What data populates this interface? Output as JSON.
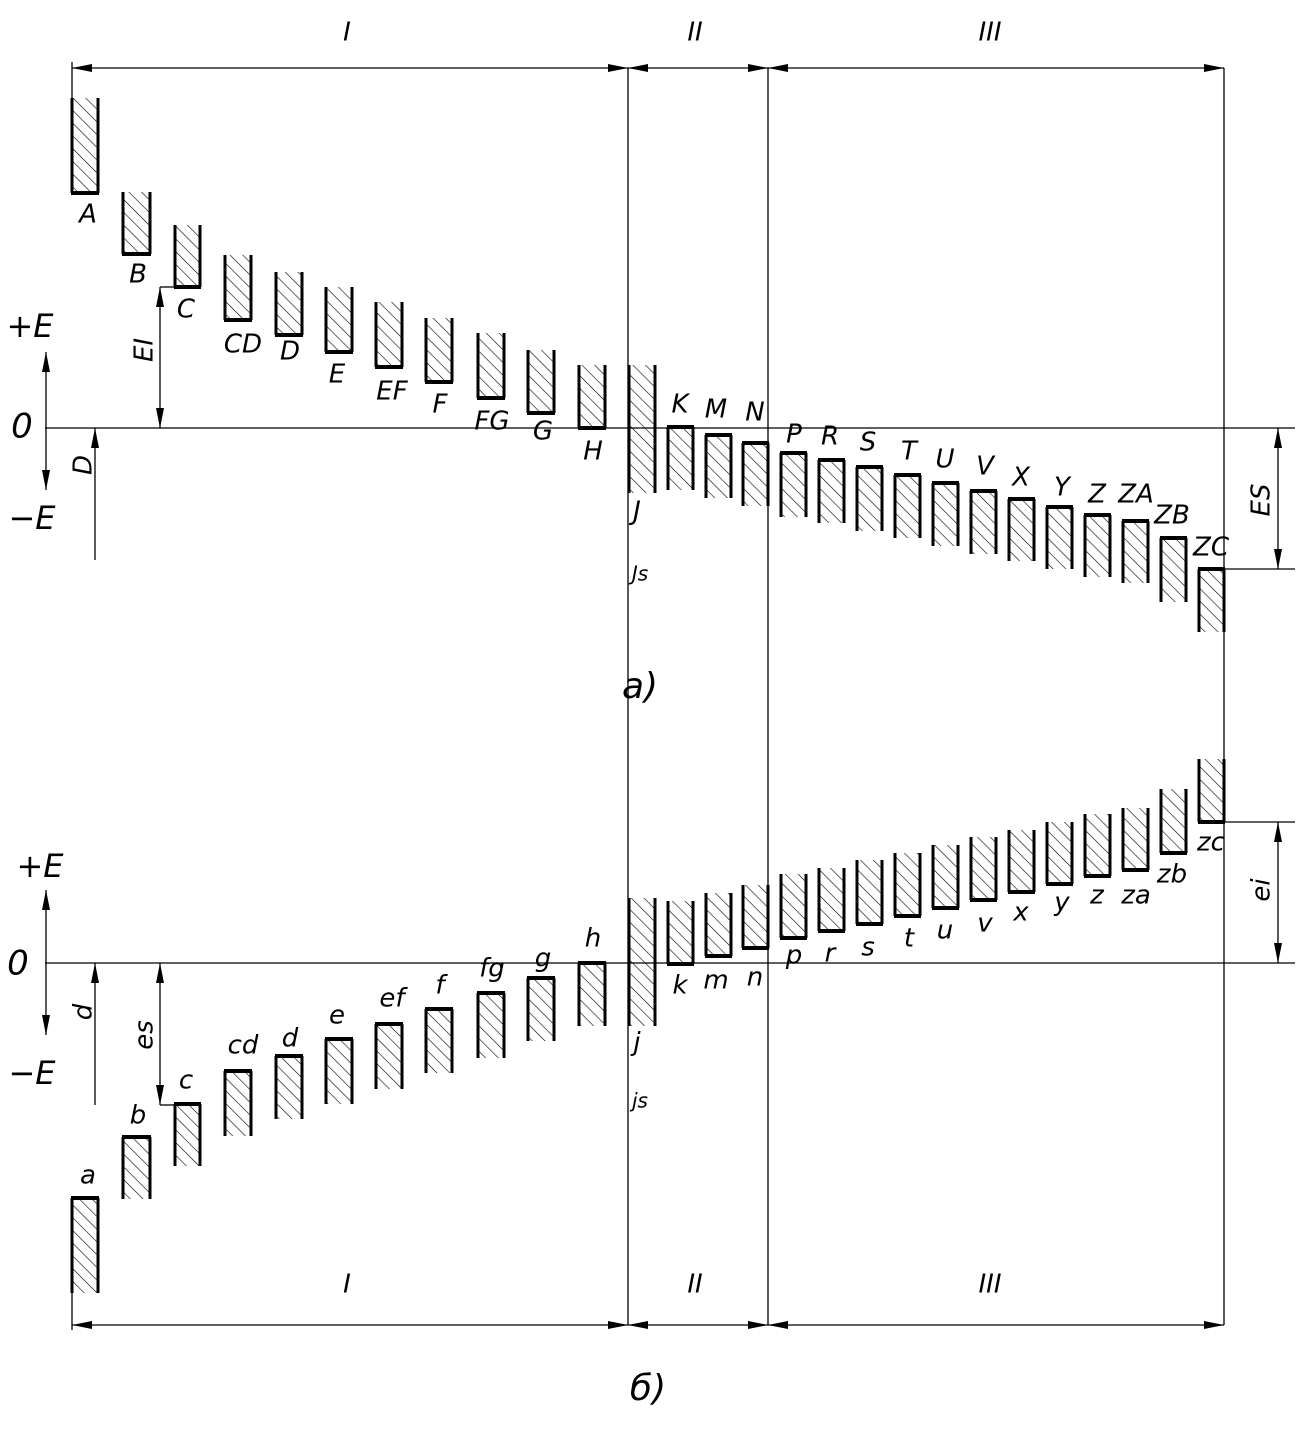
{
  "upper": {
    "zones": [
      "I",
      "II",
      "III"
    ],
    "axis": {
      "plus": "+E",
      "zero": "0",
      "minus": "−E"
    },
    "dims": {
      "main": "D",
      "lower_dev": "EI",
      "upper_dev": "ES"
    },
    "letters": [
      "A",
      "B",
      "C",
      "CD",
      "D",
      "E",
      "EF",
      "F",
      "FG",
      "G",
      "H",
      "J",
      "Js",
      "K",
      "M",
      "N",
      "P",
      "R",
      "S",
      "T",
      "U",
      "V",
      "X",
      "Y",
      "Z",
      "ZA",
      "ZB",
      "ZC"
    ],
    "caption": "а)"
  },
  "lower": {
    "zones": [
      "I",
      "II",
      "III"
    ],
    "axis": {
      "plus": "+E",
      "zero": "0",
      "minus": "−E"
    },
    "dims": {
      "main": "d",
      "upper_dev": "es",
      "lower_dev": "ei"
    },
    "letters": [
      "a",
      "b",
      "c",
      "cd",
      "d",
      "e",
      "ef",
      "f",
      "fg",
      "g",
      "h",
      "j",
      "js",
      "k",
      "m",
      "n",
      "p",
      "r",
      "s",
      "t",
      "u",
      "v",
      "x",
      "y",
      "z",
      "za",
      "zb",
      "zc"
    ],
    "caption": "б)"
  }
}
